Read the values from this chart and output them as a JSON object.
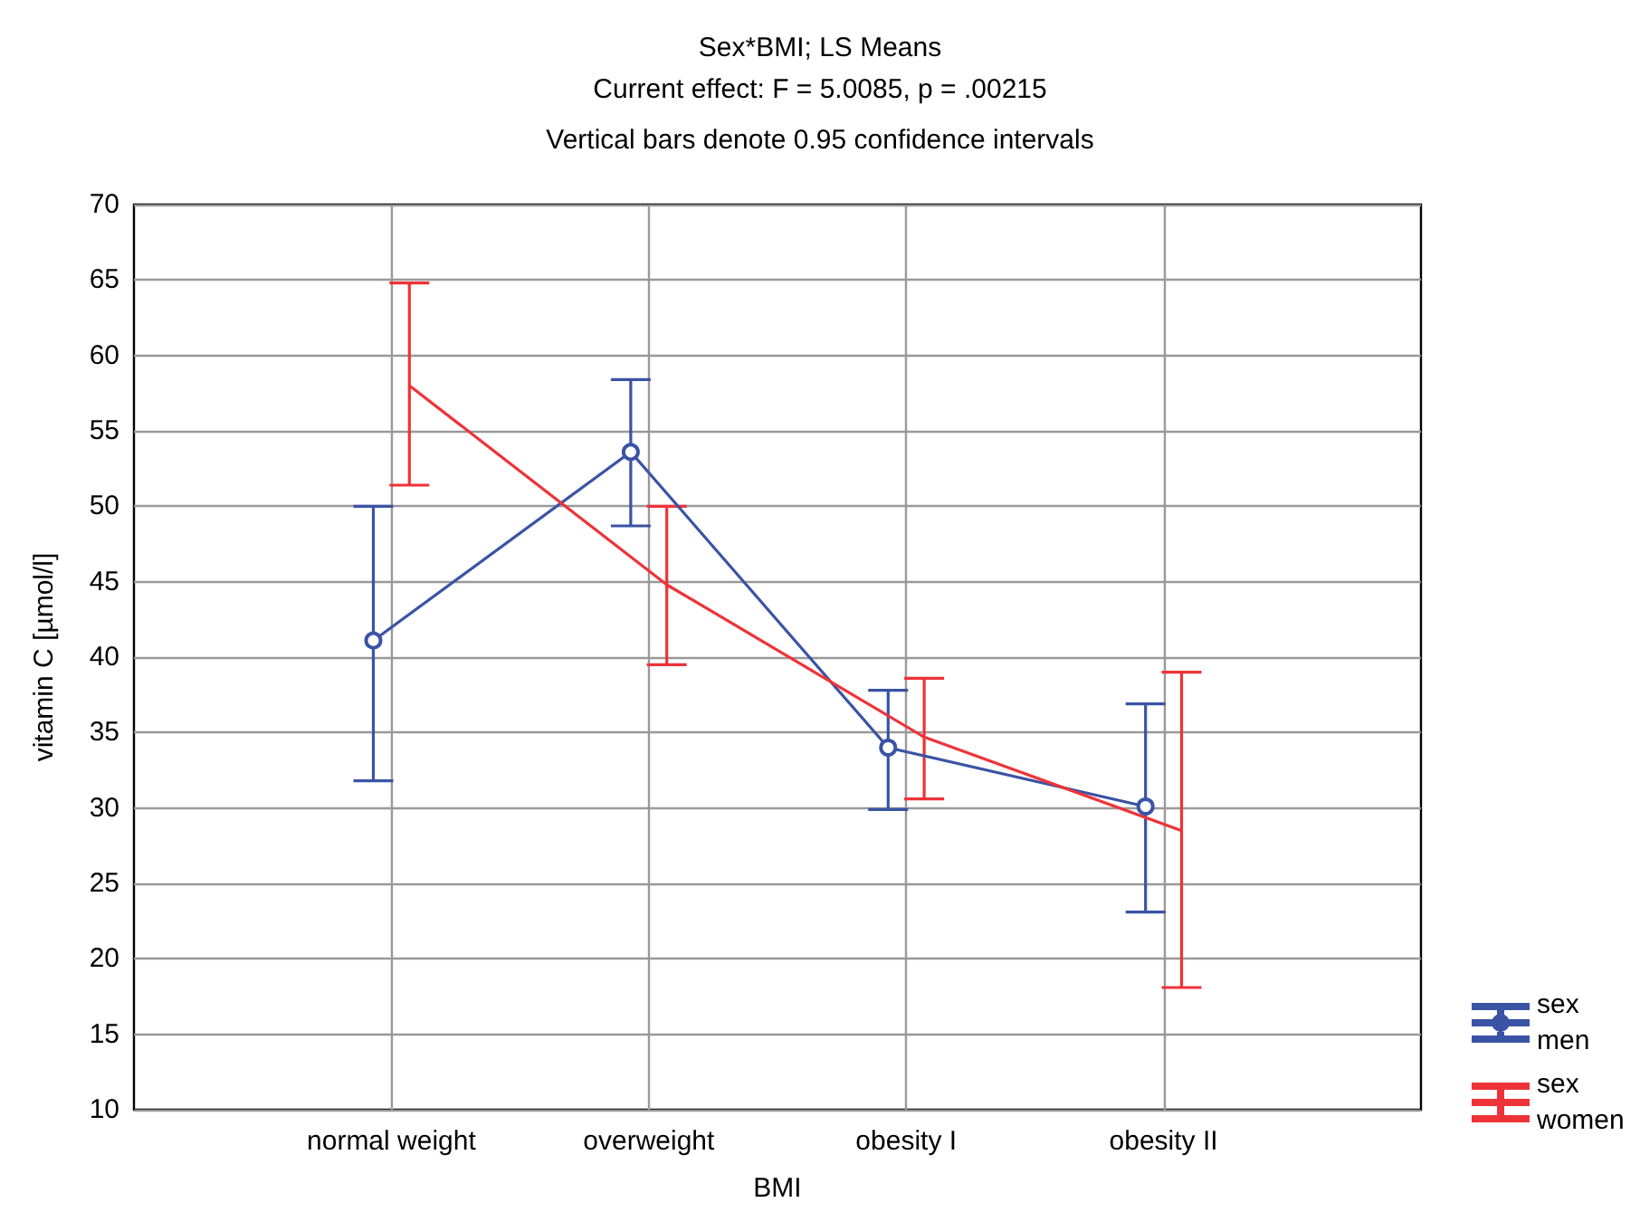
{
  "chart_data": {
    "type": "line",
    "title": "Sex*BMI; LS Means",
    "subtitle": "Current effect: F = 5.0085, p = .00215",
    "annotations": [
      "Vertical bars denote 0.95 confidence intervals"
    ],
    "xlabel": "BMI",
    "ylabel": "vitamin C [µmol/l]",
    "categories": [
      "normal weight",
      "overweight",
      "obesity I",
      "obesity II"
    ],
    "series": [
      {
        "name": "sex men",
        "color": "#3a53a4",
        "marker": "circle",
        "values": [
          41.1,
          53.6,
          34.0,
          30.1
        ],
        "errors": [
          [
            31.8,
            50.0
          ],
          [
            48.7,
            58.4
          ],
          [
            29.9,
            37.8
          ],
          [
            23.1,
            36.9
          ]
        ]
      },
      {
        "name": "sex women",
        "color": "#ee3338",
        "marker": "none",
        "values": [
          58.0,
          44.8,
          34.7,
          28.5
        ],
        "errors": [
          [
            51.4,
            64.8
          ],
          [
            39.5,
            50.0
          ],
          [
            30.6,
            38.6
          ],
          [
            18.1,
            39.0
          ]
        ]
      }
    ],
    "ylim": [
      10,
      70
    ],
    "yticks": [
      10,
      15,
      20,
      25,
      30,
      35,
      40,
      45,
      50,
      55,
      60,
      65,
      70
    ],
    "grid": true,
    "legend": "bottom right",
    "line_style": "solid"
  }
}
